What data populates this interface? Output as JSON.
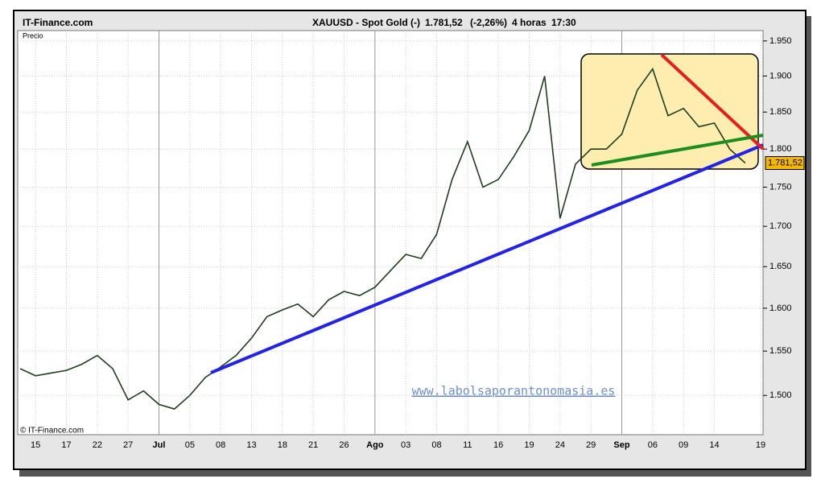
{
  "chart_data": {
    "type": "line",
    "brand": "IT-Finance.com",
    "title": "XAUUSD - Spot Gold (-)",
    "last_price": {
      "value": 1781.52,
      "label": "1.781,52"
    },
    "change": "(-2,26%)",
    "interval": "4 horas",
    "time": "17:30",
    "y_label": "Precio",
    "copyright": "© IT-Finance.com",
    "watermark": "www.labolsaporantonomasia.es",
    "categories": [
      null,
      "15",
      null,
      "17",
      null,
      "22",
      null,
      "27",
      null,
      "Jul",
      null,
      "05",
      null,
      "08",
      null,
      "13",
      null,
      "18",
      null,
      "21",
      null,
      "26",
      null,
      "Ago",
      null,
      "03",
      null,
      "08",
      null,
      "11",
      null,
      "16",
      null,
      "19",
      null,
      "24",
      null,
      "29",
      null,
      "Sep",
      null,
      "06",
      null,
      "09",
      null,
      "14",
      null,
      null,
      "19"
    ],
    "values": [
      1530,
      1522,
      1525,
      1528,
      1535,
      1545,
      1530,
      1495,
      1505,
      1490,
      1485,
      1500,
      1520,
      1532,
      1545,
      1565,
      1590,
      1598,
      1605,
      1590,
      1610,
      1620,
      1615,
      1625,
      1645,
      1665,
      1660,
      1690,
      1760,
      1810,
      1750,
      1760,
      1790,
      1825,
      1900,
      1710,
      1780,
      1800,
      1800,
      1820,
      1880,
      1910,
      1845,
      1855,
      1830,
      1835,
      1800,
      1781.52,
      null
    ],
    "color": "#1e3d1e",
    "ylim": [
      1457,
      1965
    ],
    "yticks": [
      {
        "value": 1500,
        "label": "1.500"
      },
      {
        "value": 1550,
        "label": "1.550"
      },
      {
        "value": 1600,
        "label": "1.600"
      },
      {
        "value": 1650,
        "label": "1.650"
      },
      {
        "value": 1700,
        "label": "1.700"
      },
      {
        "value": 1750,
        "label": "1.750"
      },
      {
        "value": 1800,
        "label": "1.800"
      },
      {
        "value": 1850,
        "label": "1.850"
      },
      {
        "value": 1900,
        "label": "1.900"
      },
      {
        "value": 1950,
        "label": "1.950"
      }
    ],
    "log_scale": true,
    "grid": true
  }
}
